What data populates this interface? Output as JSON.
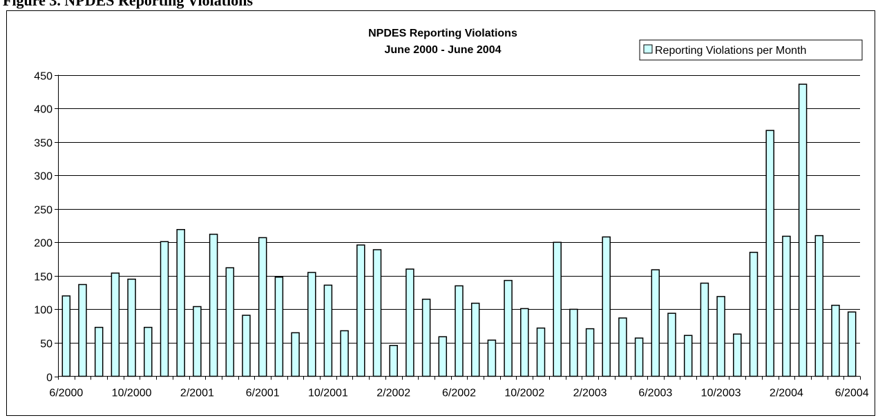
{
  "page_heading": "Figure 3. NPDES Reporting Violations",
  "chart_data": {
    "type": "bar",
    "title": "NPDES Reporting Violations",
    "subtitle": "June 2000 - June 2004",
    "xlabel": "",
    "ylabel": "",
    "ylim": [
      0,
      450
    ],
    "yticks": [
      0,
      50,
      100,
      150,
      200,
      250,
      300,
      350,
      400,
      450
    ],
    "grid": true,
    "legend_position": "top-right",
    "x_tick_labels": [
      "6/2000",
      "10/2000",
      "2/2001",
      "6/2001",
      "10/2001",
      "2/2002",
      "6/2002",
      "10/2002",
      "2/2003",
      "6/2003",
      "10/2003",
      "2/2004",
      "6/2004"
    ],
    "bar_fill": "#ccffff",
    "bar_stroke": "#000000",
    "series": [
      {
        "name": "Reporting Violations per Month",
        "values": [
          120,
          137,
          73,
          154,
          145,
          73,
          201,
          219,
          104,
          212,
          162,
          91,
          207,
          148,
          65,
          155,
          136,
          68,
          196,
          189,
          46,
          160,
          115,
          59,
          135,
          109,
          54,
          143,
          101,
          72,
          200,
          100,
          71,
          208,
          87,
          57,
          159,
          94,
          61,
          139,
          119,
          63,
          185,
          367,
          209,
          436,
          210,
          106,
          96
        ]
      }
    ]
  }
}
